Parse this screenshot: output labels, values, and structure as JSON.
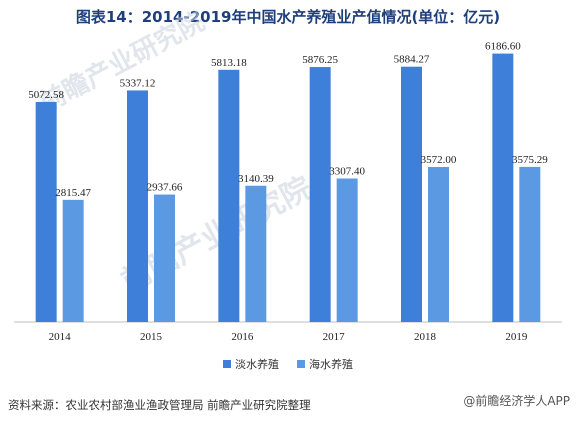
{
  "title": "图表14：2014-2019年中国水产养殖业产值情况(单位：亿元)",
  "source": "资料来源：农业农村部渔业渔政管理局 前瞻产业研究院整理",
  "watermark_text": "前瞻产业研究院",
  "corner_watermark": "@前瞻经济学人APP",
  "colors": {
    "series1": "#3e7fd9",
    "series2": "#5b9ae3",
    "axis": "#bfbfbf"
  },
  "chart_data": {
    "type": "bar",
    "categories": [
      "2014",
      "2015",
      "2016",
      "2017",
      "2018",
      "2019"
    ],
    "series": [
      {
        "name": "淡水养殖",
        "values": [
          5072.58,
          5337.12,
          5813.18,
          5876.25,
          5884.27,
          6186.6
        ],
        "labels": [
          "5072.58",
          "5337.12",
          "5813.18",
          "5876.25",
          "5884.27",
          "6186.60"
        ]
      },
      {
        "name": "海水养殖",
        "values": [
          2815.47,
          2937.66,
          3140.39,
          3307.4,
          3572.0,
          3575.29
        ],
        "labels": [
          "2815.47",
          "2937.66",
          "3140.39",
          "3307.40",
          "3572.00",
          "3575.29"
        ]
      }
    ],
    "ylim": [
      0,
      6500
    ],
    "grid": false,
    "legend_position": "bottom"
  }
}
